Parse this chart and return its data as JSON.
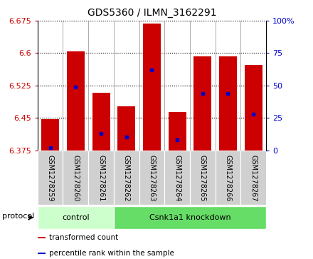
{
  "title": "GDS5360 / ILMN_3162291",
  "samples": [
    "GSM1278259",
    "GSM1278260",
    "GSM1278261",
    "GSM1278262",
    "GSM1278263",
    "GSM1278264",
    "GSM1278265",
    "GSM1278266",
    "GSM1278267"
  ],
  "bar_bottom": 6.375,
  "bar_tops": [
    6.447,
    6.604,
    6.508,
    6.476,
    6.668,
    6.463,
    6.593,
    6.593,
    6.572
  ],
  "percentile_values": [
    2,
    49,
    13,
    10,
    62,
    8,
    44,
    44,
    28
  ],
  "ylim": [
    6.375,
    6.675
  ],
  "y_ticks": [
    6.375,
    6.45,
    6.525,
    6.6,
    6.675
  ],
  "right_ylim": [
    0,
    100
  ],
  "right_yticks": [
    0,
    25,
    50,
    75,
    100
  ],
  "right_yticklabels": [
    "0",
    "25",
    "50",
    "75",
    "100%"
  ],
  "bar_color": "#cc0000",
  "percentile_color": "#0000cc",
  "bar_width": 0.7,
  "control_indices": [
    0,
    1,
    2
  ],
  "knockdown_indices": [
    3,
    4,
    5,
    6,
    7,
    8
  ],
  "control_label": "control",
  "knockdown_label": "Csnk1a1 knockdown",
  "control_color": "#ccffcc",
  "knockdown_color": "#66dd66",
  "protocol_label": "protocol",
  "legend_items": [
    {
      "label": "transformed count",
      "color": "#cc0000"
    },
    {
      "label": "percentile rank within the sample",
      "color": "#0000cc"
    }
  ],
  "bg_color": "#ffffff",
  "tick_label_color_left": "#cc0000",
  "tick_label_color_right": "#0000cc",
  "xlabel_bg": "#d0d0d0",
  "separator_color": "#888888"
}
